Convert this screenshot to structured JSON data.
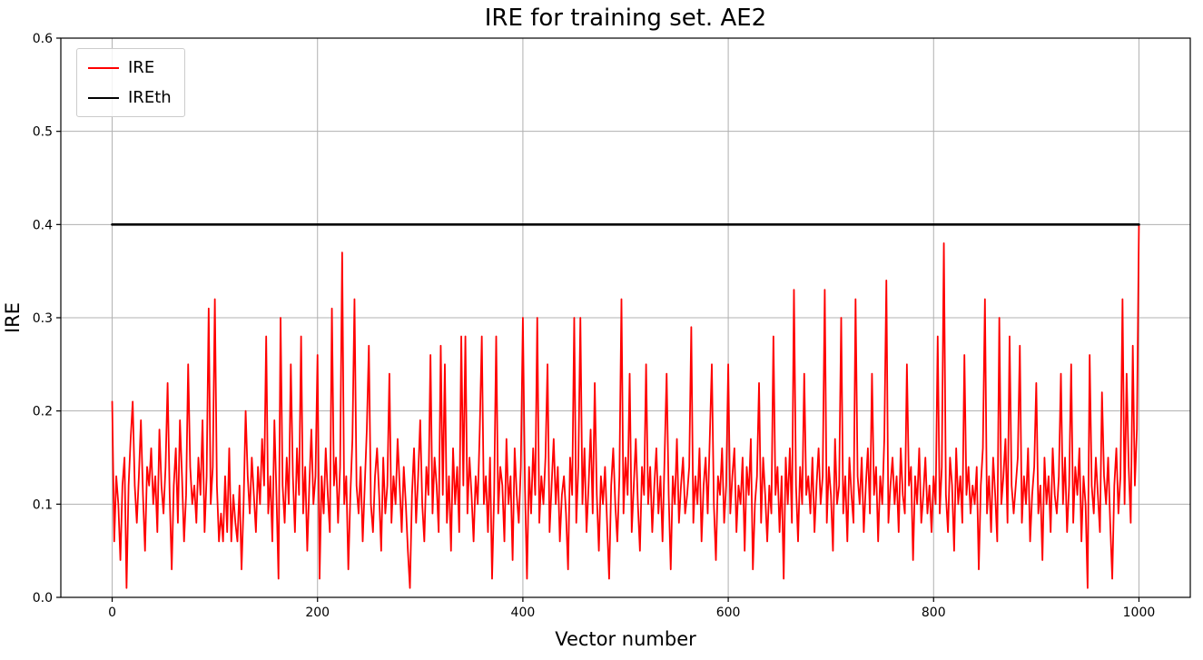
{
  "chart_data": {
    "type": "line",
    "title": "IRE for training set. AE2",
    "xlabel": "Vector number",
    "ylabel": "IRE",
    "xlim": [
      -50,
      1050
    ],
    "ylim": [
      0,
      0.6
    ],
    "grid": true,
    "grid_color": "#b0b0b0",
    "legend_position": "upper left",
    "xticks": {
      "values": [
        0,
        200,
        400,
        600,
        800,
        1000
      ],
      "labels": [
        "0",
        "200",
        "400",
        "600",
        "800",
        "1000"
      ]
    },
    "yticks": {
      "values": [
        0.0,
        0.1,
        0.2,
        0.3,
        0.4,
        0.5,
        0.6
      ],
      "labels": [
        "0.0",
        "0.1",
        "0.2",
        "0.3",
        "0.4",
        "0.5",
        "0.6"
      ]
    },
    "series": [
      {
        "name": "IRE",
        "color": "#ff0000",
        "line_width": 1.8,
        "x_start": 0,
        "x_step": 2,
        "values": [
          0.21,
          0.06,
          0.13,
          0.1,
          0.04,
          0.12,
          0.15,
          0.01,
          0.12,
          0.17,
          0.21,
          0.12,
          0.08,
          0.13,
          0.19,
          0.11,
          0.05,
          0.14,
          0.12,
          0.16,
          0.1,
          0.13,
          0.07,
          0.18,
          0.12,
          0.09,
          0.14,
          0.23,
          0.11,
          0.03,
          0.12,
          0.16,
          0.08,
          0.19,
          0.13,
          0.06,
          0.11,
          0.25,
          0.14,
          0.1,
          0.12,
          0.08,
          0.15,
          0.11,
          0.19,
          0.07,
          0.13,
          0.31,
          0.1,
          0.14,
          0.32,
          0.12,
          0.06,
          0.09,
          0.06,
          0.13,
          0.07,
          0.16,
          0.06,
          0.11,
          0.08,
          0.06,
          0.12,
          0.03,
          0.1,
          0.2,
          0.13,
          0.09,
          0.15,
          0.11,
          0.07,
          0.14,
          0.1,
          0.17,
          0.12,
          0.28,
          0.09,
          0.13,
          0.06,
          0.19,
          0.11,
          0.02,
          0.3,
          0.12,
          0.08,
          0.15,
          0.1,
          0.25,
          0.13,
          0.07,
          0.16,
          0.11,
          0.28,
          0.09,
          0.14,
          0.05,
          0.12,
          0.18,
          0.1,
          0.13,
          0.26,
          0.02,
          0.13,
          0.09,
          0.16,
          0.11,
          0.07,
          0.31,
          0.12,
          0.15,
          0.08,
          0.14,
          0.37,
          0.1,
          0.13,
          0.03,
          0.11,
          0.17,
          0.32,
          0.12,
          0.09,
          0.14,
          0.06,
          0.12,
          0.18,
          0.27,
          0.1,
          0.07,
          0.13,
          0.16,
          0.11,
          0.05,
          0.15,
          0.09,
          0.12,
          0.24,
          0.08,
          0.13,
          0.1,
          0.17,
          0.12,
          0.07,
          0.14,
          0.1,
          0.05,
          0.01,
          0.11,
          0.16,
          0.08,
          0.13,
          0.19,
          0.1,
          0.06,
          0.14,
          0.11,
          0.26,
          0.09,
          0.15,
          0.12,
          0.07,
          0.27,
          0.11,
          0.25,
          0.08,
          0.13,
          0.05,
          0.16,
          0.1,
          0.14,
          0.07,
          0.28,
          0.12,
          0.28,
          0.09,
          0.15,
          0.11,
          0.06,
          0.13,
          0.1,
          0.18,
          0.28,
          0.1,
          0.13,
          0.07,
          0.15,
          0.02,
          0.11,
          0.28,
          0.09,
          0.14,
          0.12,
          0.06,
          0.17,
          0.1,
          0.13,
          0.04,
          0.16,
          0.11,
          0.08,
          0.14,
          0.3,
          0.12,
          0.02,
          0.14,
          0.09,
          0.16,
          0.11,
          0.3,
          0.08,
          0.13,
          0.1,
          0.15,
          0.25,
          0.07,
          0.12,
          0.17,
          0.1,
          0.14,
          0.06,
          0.11,
          0.13,
          0.09,
          0.03,
          0.15,
          0.11,
          0.3,
          0.08,
          0.14,
          0.3,
          0.1,
          0.16,
          0.07,
          0.12,
          0.18,
          0.09,
          0.23,
          0.11,
          0.05,
          0.13,
          0.1,
          0.14,
          0.08,
          0.02,
          0.12,
          0.16,
          0.1,
          0.06,
          0.13,
          0.32,
          0.09,
          0.15,
          0.11,
          0.24,
          0.07,
          0.12,
          0.17,
          0.1,
          0.05,
          0.14,
          0.11,
          0.25,
          0.1,
          0.14,
          0.07,
          0.12,
          0.16,
          0.09,
          0.13,
          0.06,
          0.15,
          0.24,
          0.11,
          0.03,
          0.13,
          0.1,
          0.17,
          0.08,
          0.12,
          0.15,
          0.09,
          0.11,
          0.14,
          0.29,
          0.08,
          0.13,
          0.1,
          0.16,
          0.06,
          0.12,
          0.15,
          0.09,
          0.17,
          0.25,
          0.1,
          0.04,
          0.13,
          0.11,
          0.16,
          0.08,
          0.12,
          0.25,
          0.09,
          0.13,
          0.16,
          0.07,
          0.12,
          0.1,
          0.15,
          0.05,
          0.14,
          0.11,
          0.17,
          0.03,
          0.1,
          0.13,
          0.23,
          0.08,
          0.15,
          0.11,
          0.06,
          0.12,
          0.09,
          0.28,
          0.11,
          0.14,
          0.07,
          0.13,
          0.02,
          0.15,
          0.1,
          0.16,
          0.08,
          0.33,
          0.12,
          0.06,
          0.14,
          0.1,
          0.24,
          0.11,
          0.13,
          0.09,
          0.15,
          0.07,
          0.12,
          0.16,
          0.1,
          0.13,
          0.33,
          0.08,
          0.14,
          0.11,
          0.05,
          0.17,
          0.1,
          0.12,
          0.3,
          0.09,
          0.13,
          0.06,
          0.15,
          0.11,
          0.08,
          0.32,
          0.13,
          0.1,
          0.15,
          0.07,
          0.12,
          0.16,
          0.09,
          0.24,
          0.11,
          0.14,
          0.06,
          0.13,
          0.1,
          0.17,
          0.34,
          0.08,
          0.12,
          0.15,
          0.1,
          0.13,
          0.07,
          0.16,
          0.11,
          0.09,
          0.25,
          0.12,
          0.14,
          0.04,
          0.13,
          0.1,
          0.16,
          0.08,
          0.11,
          0.15,
          0.09,
          0.12,
          0.07,
          0.13,
          0.1,
          0.28,
          0.09,
          0.14,
          0.38,
          0.11,
          0.07,
          0.15,
          0.12,
          0.05,
          0.16,
          0.1,
          0.13,
          0.08,
          0.26,
          0.11,
          0.14,
          0.09,
          0.12,
          0.1,
          0.14,
          0.03,
          0.12,
          0.16,
          0.32,
          0.09,
          0.13,
          0.07,
          0.15,
          0.11,
          0.06,
          0.3,
          0.1,
          0.13,
          0.17,
          0.08,
          0.28,
          0.12,
          0.09,
          0.12,
          0.15,
          0.27,
          0.08,
          0.13,
          0.1,
          0.16,
          0.06,
          0.11,
          0.14,
          0.23,
          0.09,
          0.12,
          0.04,
          0.15,
          0.1,
          0.13,
          0.07,
          0.16,
          0.11,
          0.09,
          0.13,
          0.24,
          0.1,
          0.15,
          0.07,
          0.12,
          0.25,
          0.08,
          0.14,
          0.11,
          0.16,
          0.06,
          0.13,
          0.1,
          0.01,
          0.26,
          0.12,
          0.09,
          0.15,
          0.11,
          0.07,
          0.22,
          0.13,
          0.1,
          0.15,
          0.08,
          0.02,
          0.12,
          0.16,
          0.09,
          0.13,
          0.32,
          0.1,
          0.24,
          0.14,
          0.08,
          0.27,
          0.12,
          0.18,
          0.4
        ]
      },
      {
        "name": "IREth",
        "color": "#000000",
        "line_width": 2.6,
        "x": [
          0,
          1000
        ],
        "values": [
          0.4,
          0.4
        ]
      }
    ]
  }
}
